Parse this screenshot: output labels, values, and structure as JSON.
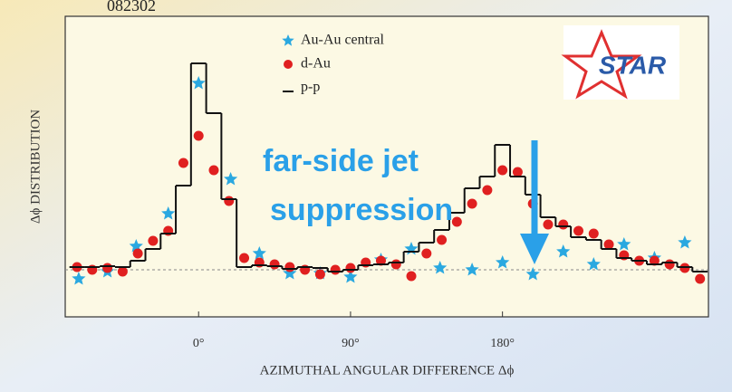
{
  "header": {
    "code": "082302"
  },
  "logo": {
    "text": "STAR"
  },
  "chart_data": {
    "type": "scatter",
    "x_label": "AZIMUTHAL ANGULAR DIFFERENCE Δϕ",
    "y_label": "Δϕ DISTRIBUTION",
    "xlim": [
      -79,
      302
    ],
    "ylim": [
      0,
      3.32
    ],
    "xticks": [
      {
        "value": 0,
        "label": "0°"
      },
      {
        "value": 90,
        "label": "90°"
      },
      {
        "value": 180,
        "label": "180°"
      }
    ],
    "reference_line": 0.52,
    "legend": "top-center",
    "annotation": {
      "lines": [
        "far-side jet",
        "suppression"
      ],
      "color": "#2aa0e8"
    },
    "series": [
      {
        "name": "Au-Au central",
        "type": "scatter",
        "marker": "star",
        "color": "#2aa8e0",
        "x": [
          -71,
          -54,
          -37,
          -18,
          0,
          19,
          36,
          54,
          72,
          90,
          108,
          126,
          143,
          162,
          180,
          198,
          216,
          234,
          252,
          270,
          288
        ],
        "values": [
          0.42,
          0.5,
          0.78,
          1.14,
          2.58,
          1.52,
          0.7,
          0.48,
          0.48,
          0.44,
          0.63,
          0.75,
          0.54,
          0.52,
          0.6,
          0.47,
          0.72,
          0.58,
          0.8,
          0.65,
          0.82
        ]
      },
      {
        "name": "d-Au",
        "type": "scatter",
        "marker": "circle",
        "color": "#e02020",
        "x": [
          -72,
          -63,
          -54,
          -45,
          -36,
          -27,
          -18,
          -9,
          0,
          9,
          18,
          27,
          36,
          45,
          54,
          63,
          72,
          81,
          90,
          99,
          108,
          117,
          126,
          135,
          144,
          153,
          162,
          171,
          180,
          189,
          198,
          207,
          216,
          225,
          234,
          243,
          252,
          261,
          270,
          279,
          288,
          297
        ],
        "values": [
          0.55,
          0.52,
          0.54,
          0.5,
          0.7,
          0.84,
          0.95,
          1.7,
          2.0,
          1.62,
          1.28,
          0.65,
          0.6,
          0.58,
          0.55,
          0.52,
          0.47,
          0.52,
          0.54,
          0.6,
          0.62,
          0.58,
          0.45,
          0.7,
          0.85,
          1.05,
          1.25,
          1.4,
          1.62,
          1.6,
          1.25,
          1.02,
          1.02,
          0.95,
          0.92,
          0.8,
          0.68,
          0.62,
          0.62,
          0.58,
          0.54,
          0.42
        ]
      },
      {
        "name": "p-p",
        "type": "step",
        "color": "#111111",
        "bins": [
          -76.5,
          -67.5,
          -58.5,
          -49.5,
          -40.5,
          -31.5,
          -22.5,
          -13.5,
          -4.5,
          4.5,
          13.5,
          22.5,
          31.5,
          40.5,
          49.5,
          58.5,
          67.5,
          76.5,
          85.5,
          94.5,
          103.5,
          112.5,
          121.5,
          130.5,
          139.5,
          148.5,
          157.5,
          166.5,
          175.5,
          184.5,
          193.5,
          202.5,
          211.5,
          220.5,
          229.5,
          238.5,
          247.5,
          256.5,
          265.5,
          274.5,
          283.5,
          292.5,
          301.5
        ],
        "values": [
          0.55,
          0.55,
          0.56,
          0.55,
          0.62,
          0.75,
          0.92,
          1.45,
          2.8,
          2.25,
          1.3,
          0.55,
          0.57,
          0.56,
          0.53,
          0.55,
          0.54,
          0.5,
          0.52,
          0.57,
          0.58,
          0.6,
          0.72,
          0.82,
          0.96,
          1.15,
          1.42,
          1.55,
          1.9,
          1.55,
          1.35,
          1.1,
          1.0,
          0.88,
          0.85,
          0.75,
          0.65,
          0.62,
          0.58,
          0.6,
          0.55,
          0.5
        ]
      }
    ]
  }
}
